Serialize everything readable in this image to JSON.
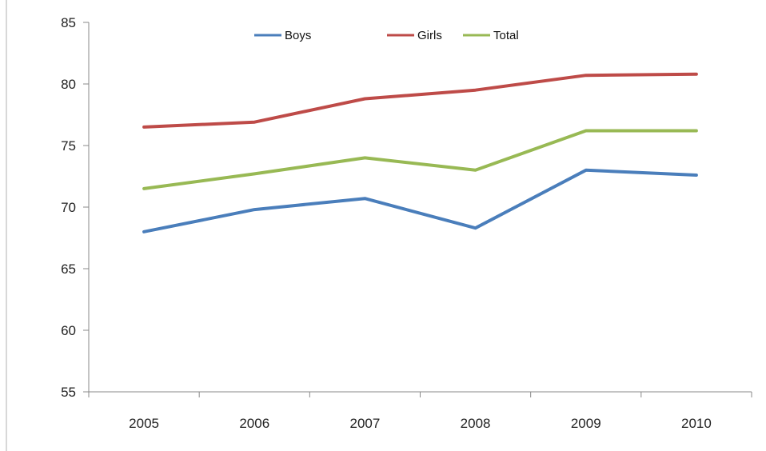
{
  "chart_data": {
    "type": "line",
    "title": "",
    "xlabel": "",
    "ylabel": "",
    "categories": [
      "2005",
      "2006",
      "2007",
      "2008",
      "2009",
      "2010"
    ],
    "ylim": [
      55,
      85
    ],
    "yticks": [
      55,
      60,
      65,
      70,
      75,
      80,
      85
    ],
    "grid": false,
    "legend_position": "top-center",
    "series": [
      {
        "name": "Boys",
        "color": "#4a7ebb",
        "values": [
          68.0,
          69.8,
          70.7,
          68.3,
          73.0,
          72.6
        ]
      },
      {
        "name": "Girls",
        "color": "#be4b48",
        "values": [
          76.5,
          76.9,
          78.8,
          79.5,
          80.7,
          80.8
        ]
      },
      {
        "name": "Total",
        "color": "#98b954",
        "values": [
          71.5,
          72.7,
          74.0,
          73.0,
          76.2,
          76.2
        ]
      }
    ]
  }
}
